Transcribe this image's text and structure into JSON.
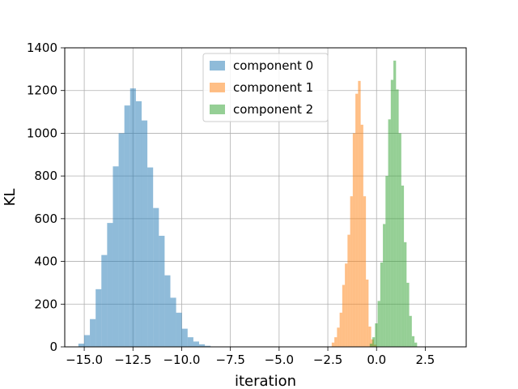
{
  "chart_data": {
    "type": "histogram",
    "xlabel": "iteration",
    "ylabel": "KL",
    "xlim": [
      -16.0,
      4.6
    ],
    "ylim": [
      0,
      1400
    ],
    "grid": true,
    "legend_placement": "upper-center",
    "x_ticks": [
      -15.0,
      -12.5,
      -10.0,
      -7.5,
      -5.0,
      -2.5,
      0.0,
      2.5
    ],
    "x_tick_labels": [
      "−15.0",
      "−12.5",
      "−10.0",
      "−7.5",
      "−5.0",
      "−2.5",
      "0.0",
      "2.5"
    ],
    "y_ticks": [
      0,
      200,
      400,
      600,
      800,
      1000,
      1200,
      1400
    ],
    "y_tick_labels": [
      "0",
      "200",
      "400",
      "600",
      "800",
      "1000",
      "1200",
      "1400"
    ],
    "series": [
      {
        "name": "component 0",
        "color": "#1f77b4",
        "opacity": 0.5,
        "bin_start": -15.3,
        "bin_width": 0.295,
        "counts": [
          15,
          55,
          130,
          270,
          430,
          580,
          845,
          1000,
          1130,
          1210,
          1150,
          1060,
          840,
          650,
          520,
          335,
          230,
          160,
          85,
          45,
          25,
          12,
          5
        ]
      },
      {
        "name": "component 1",
        "color": "#ff7f0e",
        "opacity": 0.5,
        "bin_start": -2.3,
        "bin_width": 0.135,
        "counts": [
          20,
          45,
          90,
          160,
          290,
          390,
          525,
          705,
          1000,
          1185,
          1245,
          1040,
          705,
          315,
          95,
          35,
          10
        ]
      },
      {
        "name": "component 2",
        "color": "#2ca02c",
        "opacity": 0.5,
        "bin_start": -0.35,
        "bin_width": 0.135,
        "counts": [
          15,
          45,
          110,
          215,
          395,
          575,
          800,
          1065,
          1250,
          1340,
          1205,
          1000,
          755,
          490,
          300,
          145,
          50,
          20
        ]
      }
    ]
  }
}
